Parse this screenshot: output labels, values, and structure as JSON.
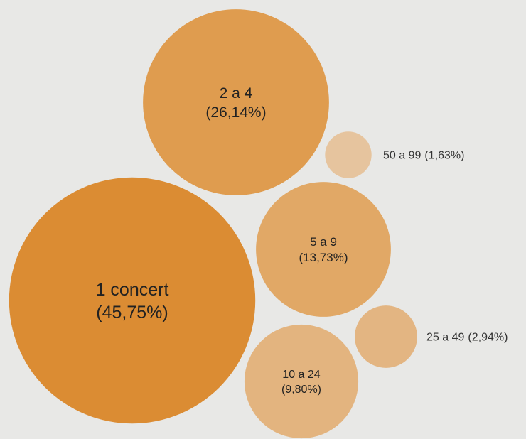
{
  "chart_data": {
    "type": "bubble",
    "unit": "%",
    "items": [
      {
        "category": "1 concert",
        "percent_label": "(45,75%)",
        "value": 45.75,
        "color": "#db8c33"
      },
      {
        "category": "2 a 4",
        "percent_label": "(26,14%)",
        "value": 26.14,
        "color": "#df9c4f"
      },
      {
        "category": "5 a 9",
        "percent_label": "(13,73%)",
        "value": 13.73,
        "color": "#e1a866"
      },
      {
        "category": "10 a 24",
        "percent_label": "(9,80%)",
        "value": 9.8,
        "color": "#e3b47f"
      },
      {
        "category": "25 a 49",
        "percent_label": "(2,94%)",
        "value": 2.94,
        "color": "#e3b582"
      },
      {
        "category": "50 a 99",
        "percent_label": "(1,63%)",
        "value": 1.63,
        "color": "#e6c49e"
      }
    ]
  }
}
